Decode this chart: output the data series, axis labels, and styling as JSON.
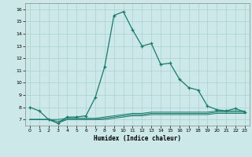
{
  "xlabel": "Humidex (Indice chaleur)",
  "background_color": "#cce8e8",
  "grid_color": "#aad0d0",
  "line_color": "#1a7a6a",
  "xlim": [
    -0.5,
    23.5
  ],
  "ylim": [
    6.5,
    16.5
  ],
  "yticks": [
    7,
    8,
    9,
    10,
    11,
    12,
    13,
    14,
    15,
    16
  ],
  "xticks": [
    0,
    1,
    2,
    3,
    4,
    5,
    6,
    7,
    8,
    9,
    10,
    11,
    12,
    13,
    14,
    15,
    16,
    17,
    18,
    19,
    20,
    21,
    22,
    23
  ],
  "line1_x": [
    0,
    1,
    2,
    3,
    4,
    5,
    6,
    7,
    8,
    9,
    10,
    11,
    12,
    13,
    14,
    15,
    16,
    17,
    18,
    19,
    20,
    21,
    22,
    23
  ],
  "line1_y": [
    8.0,
    7.7,
    7.0,
    6.7,
    7.2,
    7.2,
    7.3,
    8.8,
    11.3,
    15.5,
    15.8,
    14.3,
    13.0,
    13.2,
    11.5,
    11.6,
    10.3,
    9.6,
    9.4,
    8.1,
    7.8,
    7.7,
    7.9,
    7.6
  ],
  "line2_x": [
    0,
    1,
    2,
    3,
    4,
    5,
    6,
    7,
    8,
    9,
    10,
    11,
    12,
    13,
    14,
    15,
    16,
    17,
    18,
    19,
    20,
    21,
    22,
    23
  ],
  "line2_y": [
    7.0,
    7.0,
    7.0,
    7.0,
    7.1,
    7.1,
    7.1,
    7.1,
    7.2,
    7.3,
    7.4,
    7.5,
    7.5,
    7.6,
    7.6,
    7.6,
    7.6,
    7.6,
    7.6,
    7.6,
    7.7,
    7.7,
    7.7,
    7.7
  ],
  "line3_x": [
    0,
    1,
    2,
    3,
    4,
    5,
    6,
    7,
    8,
    9,
    10,
    11,
    12,
    13,
    14,
    15,
    16,
    17,
    18,
    19,
    20,
    21,
    22,
    23
  ],
  "line3_y": [
    7.0,
    7.0,
    7.0,
    6.85,
    7.0,
    7.0,
    7.0,
    7.0,
    7.1,
    7.2,
    7.3,
    7.4,
    7.4,
    7.5,
    7.5,
    7.5,
    7.5,
    7.5,
    7.5,
    7.5,
    7.6,
    7.6,
    7.6,
    7.6
  ],
  "line4_x": [
    0,
    1,
    2,
    3,
    4,
    5,
    6,
    7,
    8,
    9,
    10,
    11,
    12,
    13,
    14,
    15,
    16,
    17,
    18,
    19,
    20,
    21,
    22,
    23
  ],
  "line4_y": [
    7.0,
    7.0,
    7.0,
    6.7,
    7.0,
    7.0,
    7.0,
    7.0,
    7.0,
    7.1,
    7.2,
    7.3,
    7.3,
    7.4,
    7.4,
    7.4,
    7.4,
    7.4,
    7.4,
    7.4,
    7.5,
    7.5,
    7.5,
    7.5
  ]
}
